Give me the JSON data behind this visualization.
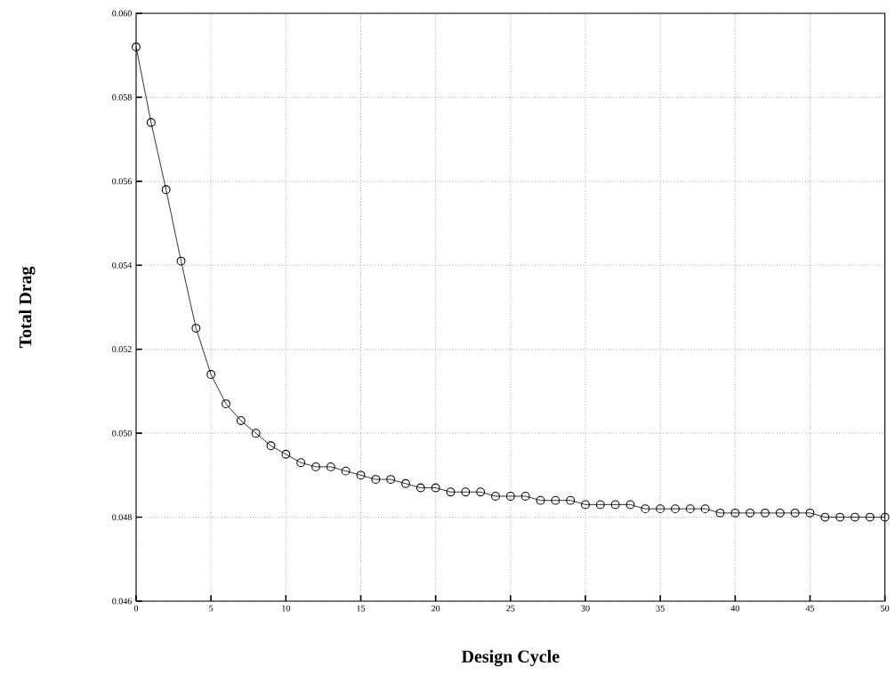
{
  "chart_data": {
    "type": "line",
    "xlabel": "Design Cycle",
    "ylabel": "Total Drag",
    "x": [
      0,
      1,
      2,
      3,
      4,
      5,
      6,
      7,
      8,
      9,
      10,
      11,
      12,
      13,
      14,
      15,
      16,
      17,
      18,
      19,
      20,
      21,
      22,
      23,
      24,
      25,
      26,
      27,
      28,
      29,
      30,
      31,
      32,
      33,
      34,
      35,
      36,
      37,
      38,
      39,
      40,
      41,
      42,
      43,
      44,
      45,
      46,
      47,
      48,
      49,
      50
    ],
    "series": [
      {
        "color": "#000000",
        "values": [
          0.0592,
          0.0574,
          0.0558,
          0.0541,
          0.0525,
          0.0514,
          0.0507,
          0.0503,
          0.05,
          0.0497,
          0.0495,
          0.0493,
          0.0492,
          0.0492,
          0.0491,
          0.049,
          0.0489,
          0.0489,
          0.0488,
          0.0487,
          0.0487,
          0.0486,
          0.0486,
          0.0486,
          0.0485,
          0.0485,
          0.0485,
          0.0484,
          0.0484,
          0.0484,
          0.0483,
          0.0483,
          0.0483,
          0.0483,
          0.0482,
          0.0482,
          0.0482,
          0.0482,
          0.0482,
          0.0481,
          0.0481,
          0.0481,
          0.0481,
          0.0481,
          0.0481,
          0.0481,
          0.048,
          0.048,
          0.048,
          0.048,
          0.048
        ]
      }
    ],
    "xlim": [
      0,
      50
    ],
    "ylim": [
      0.046,
      0.06
    ],
    "xticks": [
      0,
      5,
      10,
      15,
      20,
      25,
      30,
      35,
      40,
      45,
      50
    ],
    "yticks": [
      {
        "value": 0.046,
        "label": "0.046"
      },
      {
        "value": 0.048,
        "label": "0.048"
      },
      {
        "value": 0.05,
        "label": "0.050"
      },
      {
        "value": 0.052,
        "label": "0.052"
      },
      {
        "value": 0.054,
        "label": "0.054"
      },
      {
        "value": 0.056,
        "label": "0.056"
      },
      {
        "value": 0.058,
        "label": "0.058"
      },
      {
        "value": 0.06,
        "label": "0.060"
      }
    ],
    "grid": true,
    "marker": "circle",
    "line_style": "solid"
  }
}
